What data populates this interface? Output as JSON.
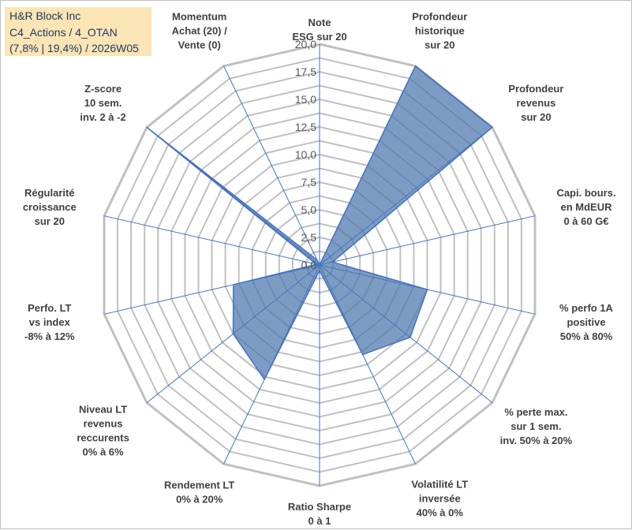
{
  "header": {
    "line1": "H&R Block Inc",
    "line2": "C4_Actions / 4_OTAN",
    "line3": "(7,8% | 19,4%) / 2026W05"
  },
  "chart_data": {
    "type": "radar",
    "axis_labels": [
      [
        "Note",
        "ESG sur 20"
      ],
      [
        "Profondeur",
        "historique",
        "sur 20"
      ],
      [
        "Profondeur",
        "revenus",
        "sur 20"
      ],
      [
        "Capi. bours.",
        "en MdEUR",
        "0 à 60 G€"
      ],
      [
        "% perfo 1A",
        "positive",
        "50% à 80%"
      ],
      [
        "% perte max.",
        "sur 1 sem.",
        "inv. 50% à 20%"
      ],
      [
        "Volatilité LT",
        "inversée",
        "40% à 0%"
      ],
      [
        "Ratio Sharpe",
        "0 à 1"
      ],
      [
        "Rendement LT",
        "0% à 20%"
      ],
      [
        "Niveau LT",
        "revenus",
        "reccurents",
        "0% à 6%"
      ],
      [
        "Perfo. LT",
        "vs index",
        "-8% à 12%"
      ],
      [
        "Régularité",
        "croissance",
        "sur 20"
      ],
      [
        "Z-score",
        "10 sem.",
        "inv. 2 à -2"
      ],
      [
        "Momentum",
        "Achat (20) /",
        "Vente (0)"
      ]
    ],
    "ticks": [
      "0,0",
      "2,5",
      "5,0",
      "7,5",
      "10,0",
      "12,5",
      "15,0",
      "17,5",
      "20,0"
    ],
    "rlim": [
      0,
      20
    ],
    "values": [
      0,
      20,
      20,
      1.2,
      10,
      10.5,
      9,
      0.5,
      11.5,
      10,
      8,
      0.3,
      20,
      0.5
    ],
    "colors": {
      "fill": "#4a76ad",
      "line": "#4472c4",
      "grid": "#c0c0c0",
      "axis": "#4472c4"
    }
  }
}
